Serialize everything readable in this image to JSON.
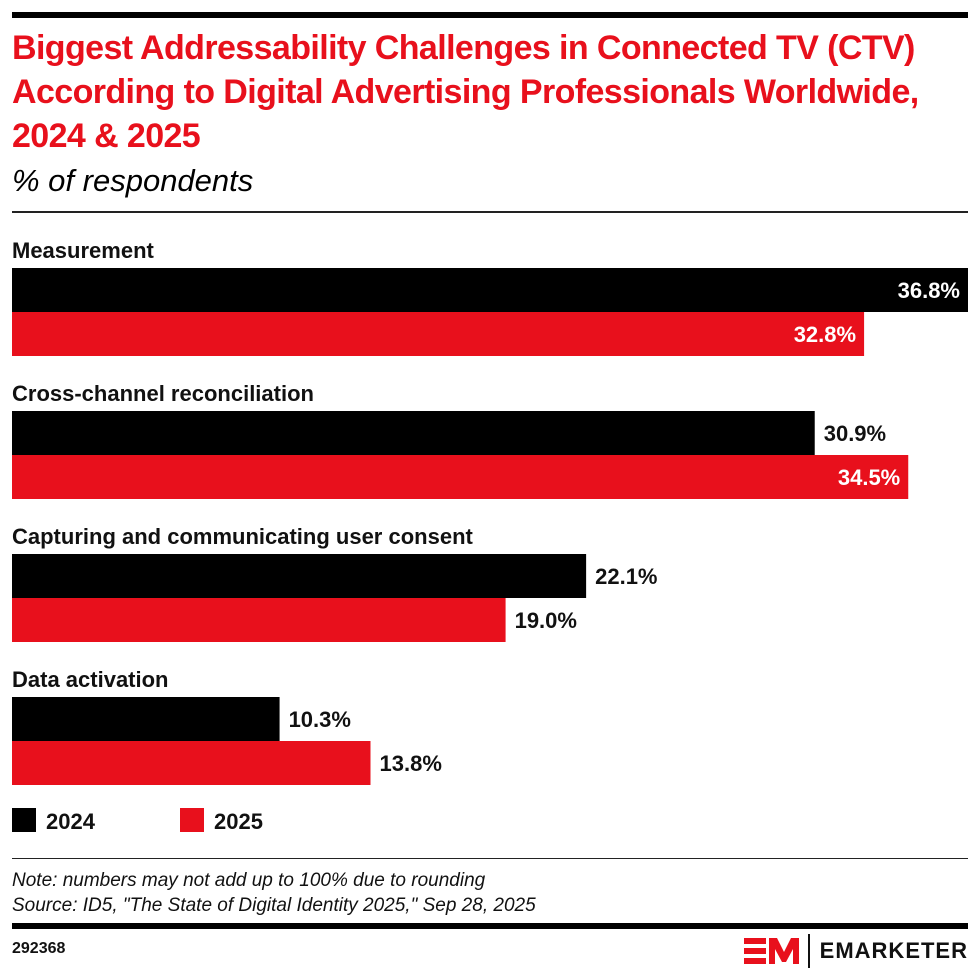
{
  "header": {
    "title": "Biggest Addressability Challenges in Connected TV (CTV) According to Digital Advertising Professionals Worldwide, 2024 & 2025",
    "subtitle": "% of respondents"
  },
  "colors": {
    "series_2024": "#000000",
    "series_2025": "#e8101c",
    "title": "#e8101c"
  },
  "chart_data": {
    "type": "bar",
    "orientation": "horizontal",
    "title": "Biggest Addressability Challenges in Connected TV (CTV) According to Digital Advertising Professionals Worldwide, 2024 & 2025",
    "subtitle": "% of respondents",
    "categories": [
      "Measurement",
      "Cross-channel reconciliation",
      "Capturing and communicating user consent",
      "Data activation"
    ],
    "series": [
      {
        "name": "2024",
        "values": [
          36.8,
          30.9,
          22.1,
          10.3
        ],
        "labels": [
          "36.8%",
          "30.9%",
          "22.1%",
          "10.3%"
        ]
      },
      {
        "name": "2025",
        "values": [
          32.8,
          34.5,
          19.0,
          13.8
        ],
        "labels": [
          "32.8%",
          "34.5%",
          "19.0%",
          "13.8%"
        ]
      }
    ],
    "xlim": [
      0,
      36.8
    ],
    "grid": false,
    "legend": "bottom-left",
    "xlabel": "",
    "ylabel": ""
  },
  "footer": {
    "note": "Note: numbers may not add up to 100% due to rounding",
    "source": "Source: ID5, \"The State of Digital Identity 2025,\" Sep 28, 2025",
    "chart_id": "292368",
    "brand": "EMARKETER"
  }
}
